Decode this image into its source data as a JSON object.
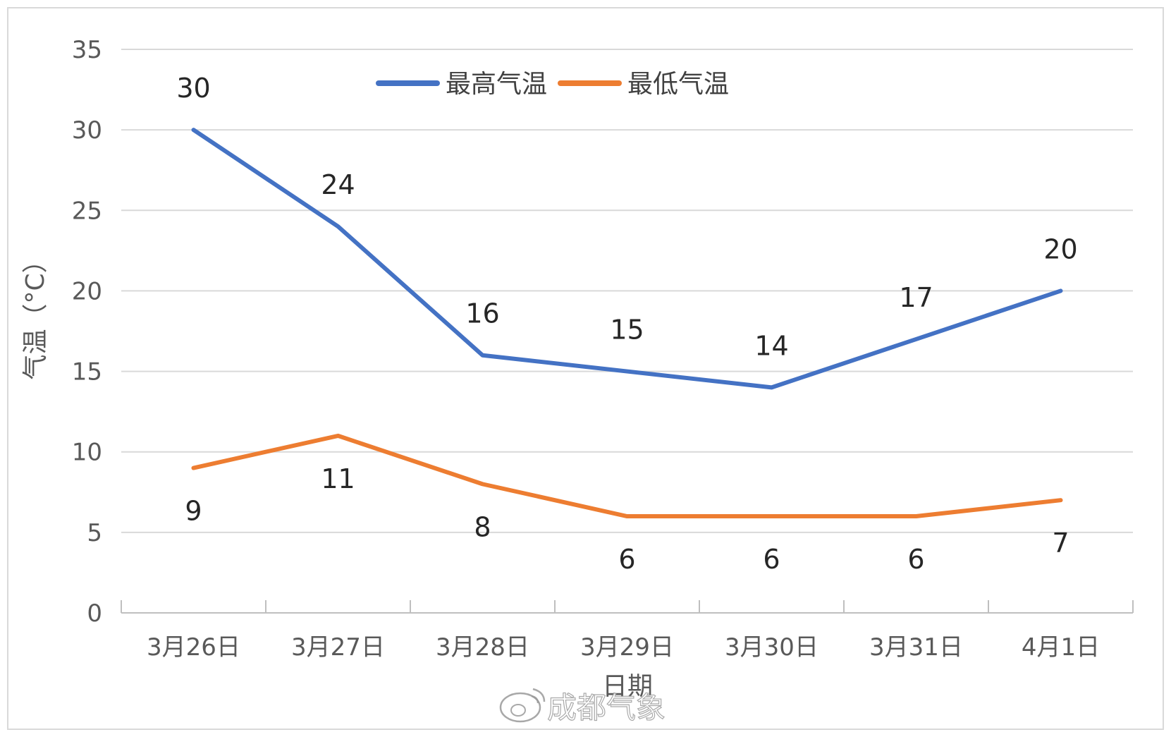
{
  "chart_data": {
    "type": "line",
    "title": "",
    "xlabel": "日期",
    "ylabel": "气温（°C）",
    "ylim": [
      0,
      35
    ],
    "yticks": [
      0,
      5,
      10,
      15,
      20,
      25,
      30,
      35
    ],
    "grid": true,
    "legend_position": "top-center",
    "categories": [
      "3月26日",
      "3月27日",
      "3月28日",
      "3月29日",
      "3月30日",
      "3月31日",
      "4月1日"
    ],
    "series": [
      {
        "name": "最高气温",
        "color": "#4472C4",
        "values": [
          30,
          24,
          16,
          15,
          14,
          17,
          20
        ],
        "label_position": "above"
      },
      {
        "name": "最低气温",
        "color": "#ED7D31",
        "values": [
          9,
          11,
          8,
          6,
          6,
          6,
          7
        ],
        "label_position": "below"
      }
    ]
  },
  "watermark": {
    "text": "成都气象",
    "icon": "weibo-icon"
  }
}
